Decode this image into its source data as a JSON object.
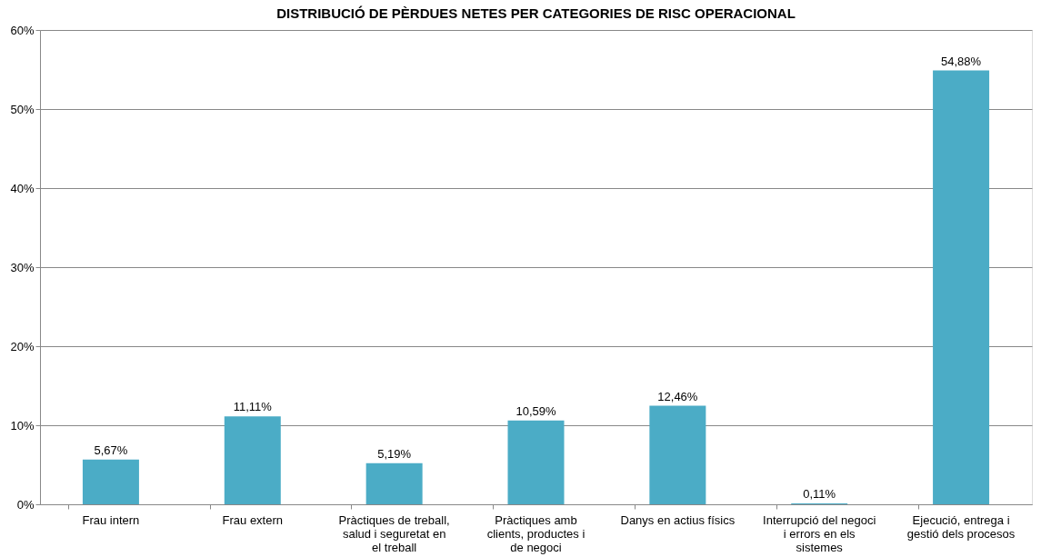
{
  "chart_data": {
    "type": "bar",
    "title": "DISTRIBUCIÓ DE PÈRDUES NETES PER CATEGORIES DE RISC OPERACIONAL",
    "categories": [
      "Frau intern",
      "Frau extern",
      "Pràctiques de treball, salud i seguretat en el treball",
      "Pràctiques amb clients, productes i de negoci",
      "Danys en actius físics",
      "Interrupció del negoci i errors en els sistemes",
      "Ejecució, entrega i gestió dels procesos"
    ],
    "values": [
      5.67,
      11.11,
      5.19,
      10.59,
      12.46,
      0.11,
      54.88
    ],
    "value_labels": [
      "5,67%",
      "11,11%",
      "5,19%",
      "10,59%",
      "12,46%",
      "0,11%",
      "54,88%"
    ],
    "color": "#4bacc6",
    "ylim": [
      0,
      60
    ],
    "yticks": [
      {
        "value": 0,
        "label": "0%"
      },
      {
        "value": 10,
        "label": "10%"
      },
      {
        "value": 20,
        "label": "20%"
      },
      {
        "value": 30,
        "label": "30%"
      },
      {
        "value": 40,
        "label": "40%"
      },
      {
        "value": 50,
        "label": "50%"
      },
      {
        "value": 60,
        "label": "60%"
      }
    ],
    "grid": "y"
  }
}
